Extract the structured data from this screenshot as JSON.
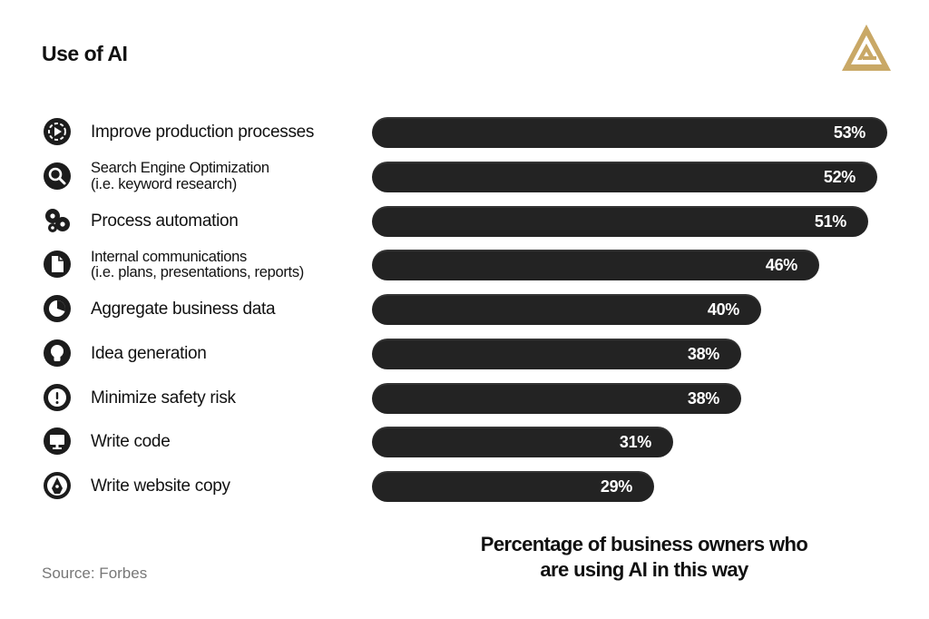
{
  "title": "Use of AI",
  "source": "Source: Forbes",
  "caption_line1": "Percentage of business owners who",
  "caption_line2": "are using AI in this way",
  "colors": {
    "bar": "#232323",
    "text": "#111111",
    "logo": "#C9A866",
    "source": "#777777"
  },
  "chart_data": {
    "type": "bar",
    "orientation": "horizontal",
    "title": "Use of AI",
    "categories": [
      {
        "label": "Improve production processes",
        "sublabel": "",
        "icon": "gear-play-icon"
      },
      {
        "label": "Search Engine Optimization",
        "sublabel": "(i.e. keyword research)",
        "icon": "magnifier-icon"
      },
      {
        "label": "Process automation",
        "sublabel": "",
        "icon": "gears-icon"
      },
      {
        "label": "Internal communications",
        "sublabel": "(i.e. plans, presentations, reports)",
        "icon": "document-icon"
      },
      {
        "label": "Aggregate business data",
        "sublabel": "",
        "icon": "pie-chart-icon"
      },
      {
        "label": "Idea generation",
        "sublabel": "",
        "icon": "lightbulb-icon"
      },
      {
        "label": "Minimize safety risk",
        "sublabel": "",
        "icon": "warning-icon"
      },
      {
        "label": "Write code",
        "sublabel": "",
        "icon": "monitor-icon"
      },
      {
        "label": "Write website copy",
        "sublabel": "",
        "icon": "pen-nib-icon"
      }
    ],
    "values": [
      53,
      52,
      51,
      46,
      40,
      38,
      38,
      31,
      29
    ],
    "value_labels": [
      "53%",
      "52%",
      "51%",
      "46%",
      "40%",
      "38%",
      "38%",
      "31%",
      "29%"
    ],
    "unit": "%",
    "xlim": [
      0,
      53
    ],
    "grid": false,
    "legend": "none"
  }
}
